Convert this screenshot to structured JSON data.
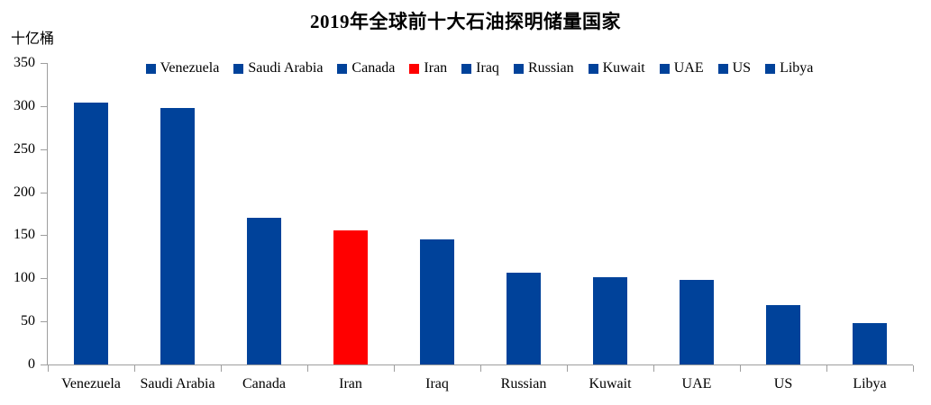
{
  "chart_data": {
    "type": "bar",
    "title": "2019年全球前十大石油探明储量国家",
    "ylabel": "十亿桶",
    "xlabel": "",
    "categories": [
      "Venezuela",
      "Saudi Arabia",
      "Canada",
      "Iran",
      "Iraq",
      "Russian",
      "Kuwait",
      "UAE",
      "US",
      "Libya"
    ],
    "values": [
      304,
      298,
      170,
      156,
      145,
      107,
      101,
      98,
      69,
      48
    ],
    "legend": [
      {
        "label": "Venezuela",
        "color": "#00429A"
      },
      {
        "label": "Saudi Arabia",
        "color": "#00429A"
      },
      {
        "label": "Canada",
        "color": "#00429A"
      },
      {
        "label": "Iran",
        "color": "#FF0000"
      },
      {
        "label": "Iraq",
        "color": "#00429A"
      },
      {
        "label": "Russian",
        "color": "#00429A"
      },
      {
        "label": "Kuwait",
        "color": "#00429A"
      },
      {
        "label": "UAE",
        "color": "#00429A"
      },
      {
        "label": "US",
        "color": "#00429A"
      },
      {
        "label": "Libya",
        "color": "#00429A"
      }
    ],
    "legend_position": "top",
    "ylim": [
      0,
      350
    ],
    "yticks": [
      0,
      50,
      100,
      150,
      200,
      250,
      300,
      350
    ],
    "grid": false,
    "colors": {
      "bar_default": "#00429A",
      "bar_highlight": "#FF0000",
      "axis": "#9E9E9E",
      "text": "#000000"
    }
  }
}
